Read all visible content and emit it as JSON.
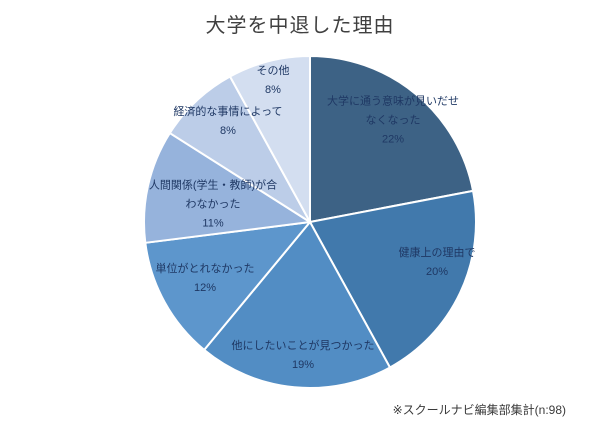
{
  "chart_data": {
    "type": "pie",
    "title": "大学を中退した理由",
    "start_angle_deg": 0,
    "direction": "clockwise",
    "legend": "none",
    "label_color": "#1F3864",
    "slice_border_color": "#ffffff",
    "source_note": "※スクールナビ編集部集計(n:98)",
    "slices": [
      {
        "label": "大学に通う意味が見いだせなくなった",
        "label_lines": [
          "大学に通う意味が見いだせ",
          "なくなった"
        ],
        "value": 22,
        "color": "#3D6285"
      },
      {
        "label": "健康上の理由で",
        "label_lines": [
          "健康上の理由で"
        ],
        "value": 20,
        "color": "#4179AC"
      },
      {
        "label": "他にしたいことが見つかった",
        "label_lines": [
          "他にしたいことが見つかった"
        ],
        "value": 19,
        "color": "#528DC4"
      },
      {
        "label": "単位がとれなかった",
        "label_lines": [
          "単位がとれなかった"
        ],
        "value": 12,
        "color": "#5D96CC"
      },
      {
        "label": "人間関係(学生・教師)が合わなかった",
        "label_lines": [
          "人間関係(学生・教師)が合",
          "わなかった"
        ],
        "value": 11,
        "color": "#96B3DC"
      },
      {
        "label": "経済的な事情によって",
        "label_lines": [
          "経済的な事情によって"
        ],
        "value": 8,
        "color": "#BCCDE8"
      },
      {
        "label": "その他",
        "label_lines": [
          "その他"
        ],
        "value": 8,
        "color": "#D3DEF0"
      }
    ]
  }
}
